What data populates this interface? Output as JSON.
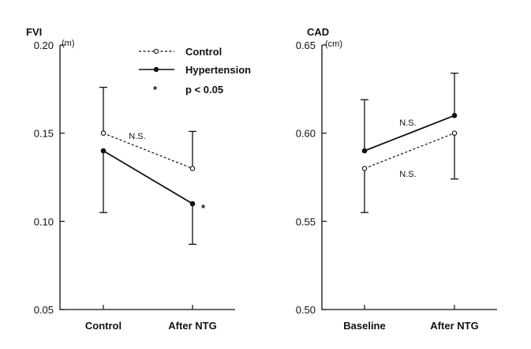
{
  "chart_data": [
    {
      "type": "line",
      "title": "FVI",
      "unit": "(m)",
      "categories": [
        "Control",
        "After NTG"
      ],
      "ylim": [
        0.05,
        0.2
      ],
      "yticks": [
        "0.20",
        "0.15",
        "0.10",
        "0.05"
      ],
      "ytick_values": [
        0.2,
        0.15,
        0.1,
        0.05
      ],
      "series": [
        {
          "name": "Control",
          "style": "dashed",
          "marker": "open",
          "values": [
            0.15,
            0.13
          ],
          "error_upper": [
            0.176,
            0.151
          ],
          "error_lower": [
            null,
            null
          ]
        },
        {
          "name": "Hypertension",
          "style": "solid",
          "marker": "filled",
          "values": [
            0.14,
            0.11
          ],
          "error_upper": [
            null,
            null
          ],
          "error_lower": [
            0.105,
            0.087
          ]
        }
      ],
      "annotations": {
        "ns": "N.S.",
        "significance_marker": "*"
      },
      "legend": {
        "position": "top-right",
        "items": [
          "Control",
          "Hypertension"
        ],
        "significance_symbol": "*",
        "significance_text": "p < 0.05"
      }
    },
    {
      "type": "line",
      "title": "CAD",
      "unit": "(cm)",
      "categories": [
        "Baseline",
        "After NTG"
      ],
      "ylim": [
        0.5,
        0.65
      ],
      "yticks": [
        "0.65",
        "0.60",
        "0.55",
        "0.50"
      ],
      "ytick_values": [
        0.65,
        0.6,
        0.55,
        0.5
      ],
      "series": [
        {
          "name": "Control",
          "style": "dashed",
          "marker": "open",
          "values": [
            0.58,
            0.6
          ],
          "error_upper": [
            null,
            null
          ],
          "error_lower": [
            0.555,
            0.574
          ]
        },
        {
          "name": "Hypertension",
          "style": "solid",
          "marker": "filled",
          "values": [
            0.59,
            0.61
          ],
          "error_upper": [
            0.619,
            0.634
          ],
          "error_lower": [
            null,
            null
          ]
        }
      ],
      "annotations": {
        "ns_upper": "N.S.",
        "ns_lower": "N.S."
      }
    }
  ],
  "colors": {
    "ink": "#111111",
    "background": "#ffffff"
  }
}
